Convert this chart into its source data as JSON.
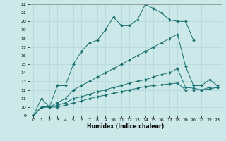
{
  "xlabel": "Humidex (Indice chaleur)",
  "bg_color": "#cce8e8",
  "line_color": "#1a7070",
  "grid_color": "#aad4d4",
  "xlim": [
    -0.5,
    23.5
  ],
  "ylim": [
    9,
    22
  ],
  "xticks": [
    0,
    1,
    2,
    3,
    4,
    5,
    6,
    7,
    8,
    9,
    10,
    11,
    12,
    13,
    14,
    15,
    16,
    17,
    18,
    19,
    20,
    21,
    22,
    23
  ],
  "yticks": [
    9,
    10,
    11,
    12,
    13,
    14,
    15,
    16,
    17,
    18,
    19,
    20,
    21,
    22
  ],
  "series": [
    [
      0,
      1,
      2,
      3,
      4,
      5,
      6,
      7,
      8,
      9,
      10,
      11,
      12,
      13,
      14,
      15,
      16,
      17,
      18,
      19,
      20,
      21,
      22,
      23
    ],
    [
      9,
      11,
      10,
      12.5,
      12.5,
      15,
      16.5,
      17.5,
      17.8,
      19,
      20.5,
      19.5,
      19.5,
      20.2,
      22,
      21.5,
      21,
      20.2,
      20,
      20,
      17.8,
      null,
      null,
      null
    ],
    [
      9,
      10,
      10,
      10.5,
      11,
      12,
      12.5,
      13,
      13.5,
      14,
      14.5,
      15,
      15.5,
      16,
      16.5,
      17,
      17.5,
      18,
      18.5,
      14.8,
      12.5,
      12.5,
      13.2,
      12.5
    ],
    [
      9,
      10,
      10,
      10.2,
      10.5,
      11,
      11.2,
      11.5,
      11.8,
      12,
      12.3,
      12.5,
      12.8,
      13,
      13.2,
      13.5,
      13.8,
      14,
      14.5,
      12.3,
      12.2,
      12,
      12.1,
      12.3
    ],
    [
      9,
      10,
      10,
      10,
      10.2,
      10.5,
      10.7,
      11,
      11.2,
      11.4,
      11.6,
      11.8,
      12,
      12.2,
      12.4,
      12.5,
      12.6,
      12.7,
      12.8,
      12.0,
      12.0,
      12.0,
      12.3,
      12.3
    ]
  ]
}
